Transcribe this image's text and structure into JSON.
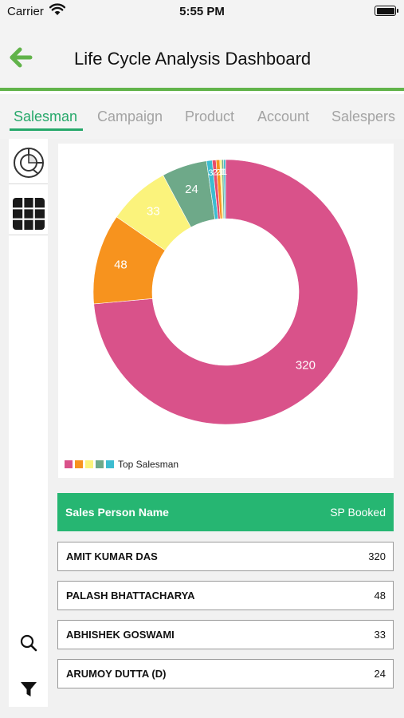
{
  "status_bar": {
    "carrier": "Carrier",
    "time": "5:55 PM"
  },
  "header": {
    "title": "Life Cycle Analysis Dashboard",
    "back_icon": "arrow-left-icon",
    "accent": "#61b34a"
  },
  "tabs": [
    {
      "label": "Salesman",
      "active": true
    },
    {
      "label": "Campaign",
      "active": false
    },
    {
      "label": "Product",
      "active": false
    },
    {
      "label": "Account",
      "active": false
    },
    {
      "label": "Salespers",
      "active": false
    }
  ],
  "sidebar": {
    "top_icons": [
      "donut-chart-icon",
      "grid-icon"
    ],
    "bottom_icons": [
      "search-icon",
      "filter-icon"
    ]
  },
  "chart_data": {
    "type": "pie",
    "style": "donut",
    "legend": {
      "label": "Top Salesman",
      "position": "bottom-left"
    },
    "slices": [
      {
        "value": 320,
        "label": "320",
        "color": "#d9528a"
      },
      {
        "value": 48,
        "label": "48",
        "color": "#f7931e"
      },
      {
        "value": 33,
        "label": "33",
        "color": "#fbf37c"
      },
      {
        "value": 24,
        "label": "24",
        "color": "#6ea989"
      },
      {
        "value": 3,
        "label": "3",
        "color": "#3cbcd0"
      },
      {
        "value": 2,
        "label": "2",
        "color": "#e74c6c"
      },
      {
        "value": 2,
        "label": "2",
        "color": "#f7931e"
      },
      {
        "value": 1,
        "label": "1",
        "color": "#fbf37c"
      },
      {
        "value": 1,
        "label": "1",
        "color": "#6ea989"
      },
      {
        "value": 1,
        "label": "1",
        "color": "#3cbcd0"
      }
    ]
  },
  "table": {
    "header": {
      "name": "Sales Person Name",
      "value": "SP Booked",
      "color": "#26b672"
    },
    "rows": [
      {
        "name": "AMIT KUMAR DAS",
        "value": "320"
      },
      {
        "name": "PALASH BHATTACHARYA",
        "value": "48"
      },
      {
        "name": "ABHISHEK GOSWAMI",
        "value": "33"
      },
      {
        "name": "ARUMOY DUTTA (D)",
        "value": "24"
      }
    ]
  }
}
